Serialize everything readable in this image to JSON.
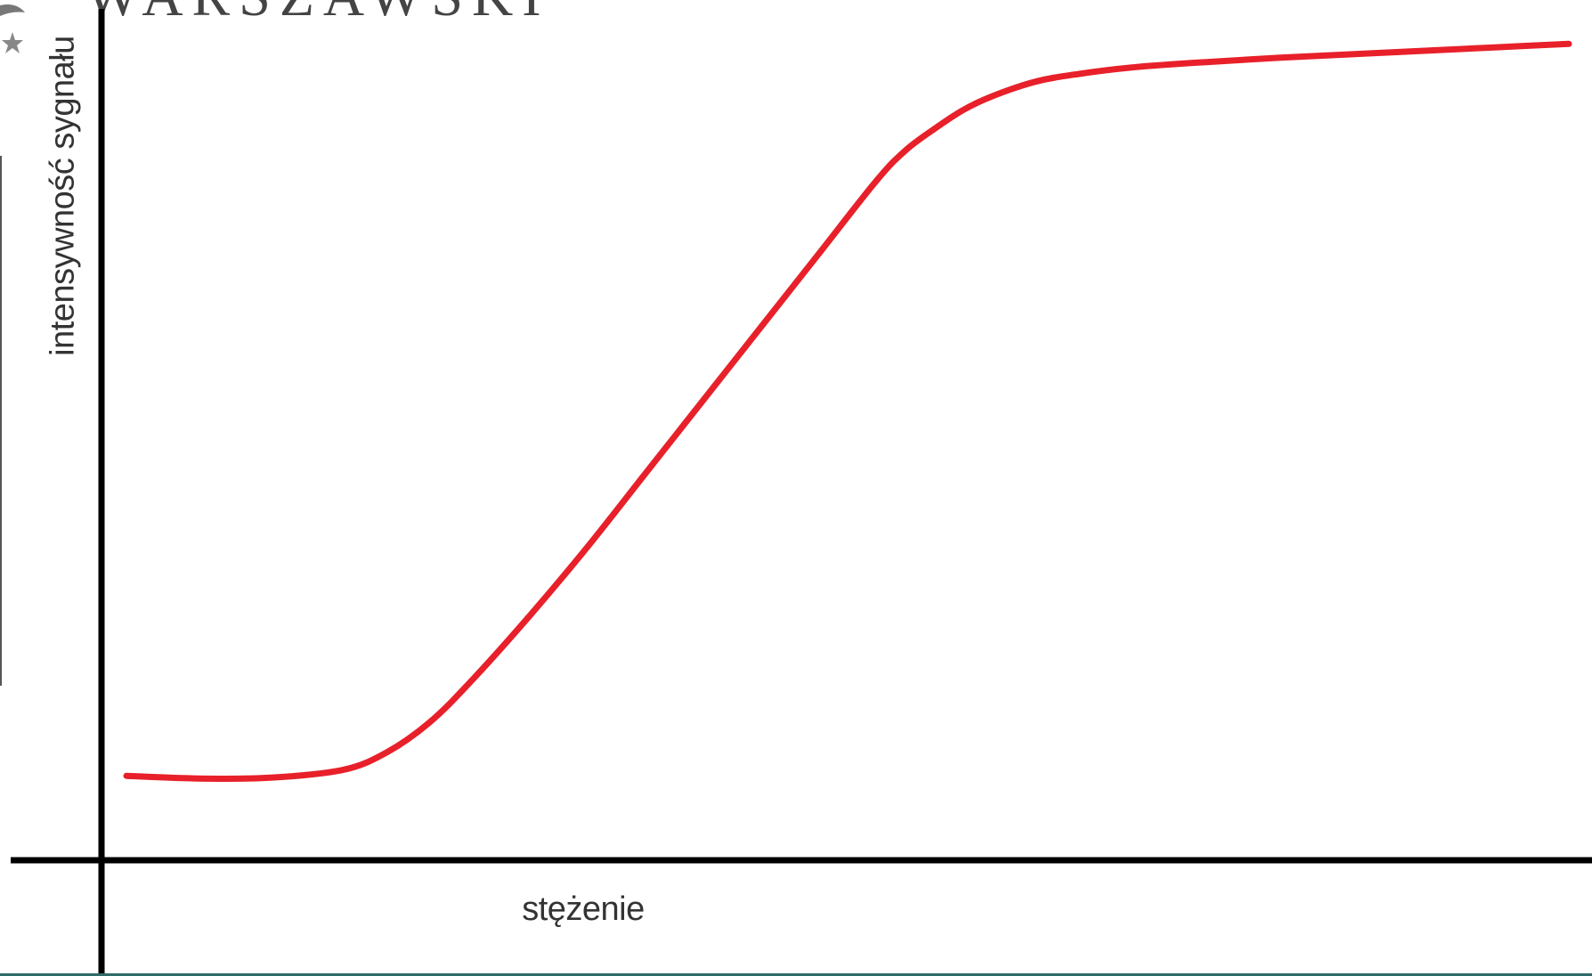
{
  "header": {
    "text": "WARSZAWSKI"
  },
  "chart_data": {
    "type": "line",
    "title": "",
    "xlabel": "stężenie",
    "ylabel": "intensywność sygnału",
    "grid": false,
    "legend": "none",
    "xlim": [
      0,
      100
    ],
    "ylim": [
      0,
      100
    ],
    "series": [
      {
        "color": "#e8202a",
        "x": [
          0,
          5,
          10,
          15,
          18,
          21,
          24,
          28,
          32,
          36,
          40,
          44,
          48,
          52,
          54,
          56,
          58,
          60,
          63,
          66,
          70,
          75,
          80,
          85,
          90,
          95,
          100
        ],
        "y": [
          9.8,
          9.5,
          9.6,
          10.5,
          12.5,
          16,
          21,
          28.5,
          36.5,
          45,
          53.5,
          62,
          70.5,
          79,
          82.5,
          85,
          87.2,
          88.8,
          90.5,
          91.4,
          92.2,
          92.8,
          93.3,
          93.7,
          94.1,
          94.5,
          94.9
        ]
      }
    ],
    "axes_color": "#000000"
  }
}
